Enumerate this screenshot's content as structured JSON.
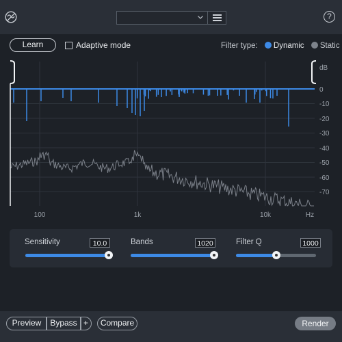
{
  "header": {
    "logo_icon": "filter-off-icon",
    "preset_value": "",
    "menu_icon": "hamburger-icon",
    "help_label": "?"
  },
  "toolbar": {
    "learn_label": "Learn",
    "adaptive_label": "Adaptive mode",
    "adaptive_checked": false,
    "filter_type_label": "Filter type:",
    "filter_options": [
      "Dynamic",
      "Static"
    ],
    "filter_selected": "Dynamic"
  },
  "spectrum": {
    "x_ticks": [
      "100",
      "1k",
      "10k",
      "Hz"
    ],
    "y_unit": "dB",
    "y_ticks": [
      "0",
      "-10",
      "-20",
      "-30",
      "-40",
      "-50",
      "-60",
      "-70"
    ],
    "colors": {
      "filter": "#3d8ae6",
      "spectrum": "#7b8089",
      "grid": "#2e343c"
    }
  },
  "controls": [
    {
      "label": "Sensitivity",
      "value": "10.0",
      "fraction": 0.99
    },
    {
      "label": "Bands",
      "value": "1020",
      "fraction": 0.99
    },
    {
      "label": "Filter Q",
      "value": "1000",
      "fraction": 0.5
    }
  ],
  "footer": {
    "preview_label": "Preview",
    "bypass_label": "Bypass",
    "plus_label": "+",
    "compare_label": "Compare",
    "render_label": "Render"
  }
}
